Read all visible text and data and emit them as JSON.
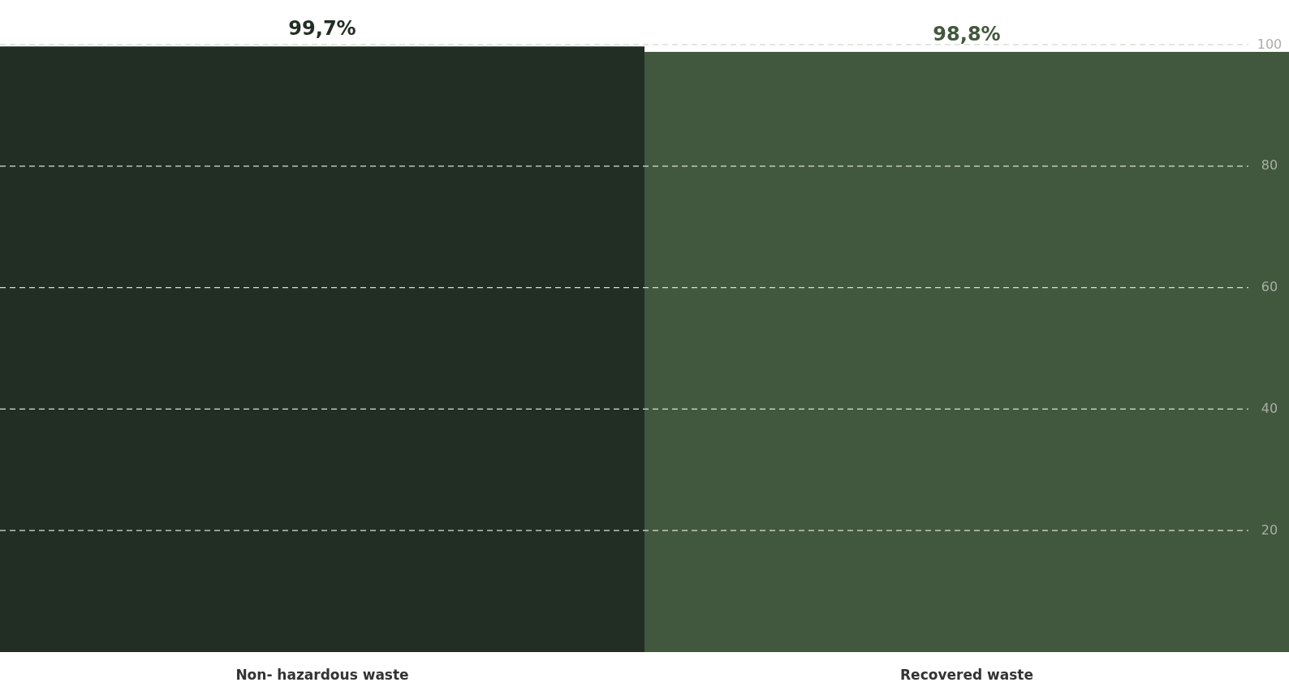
{
  "chart_data": {
    "type": "bar",
    "categories": [
      "Non- hazardous waste",
      "Recovered waste"
    ],
    "values": [
      99.7,
      98.8
    ],
    "colors": [
      "#222e24",
      "#42583e"
    ],
    "value_labels": [
      "99,7%",
      "98,8%"
    ],
    "ylim": [
      0,
      100
    ],
    "yticks": [
      20,
      40,
      60,
      80,
      100
    ],
    "grid": "y"
  }
}
